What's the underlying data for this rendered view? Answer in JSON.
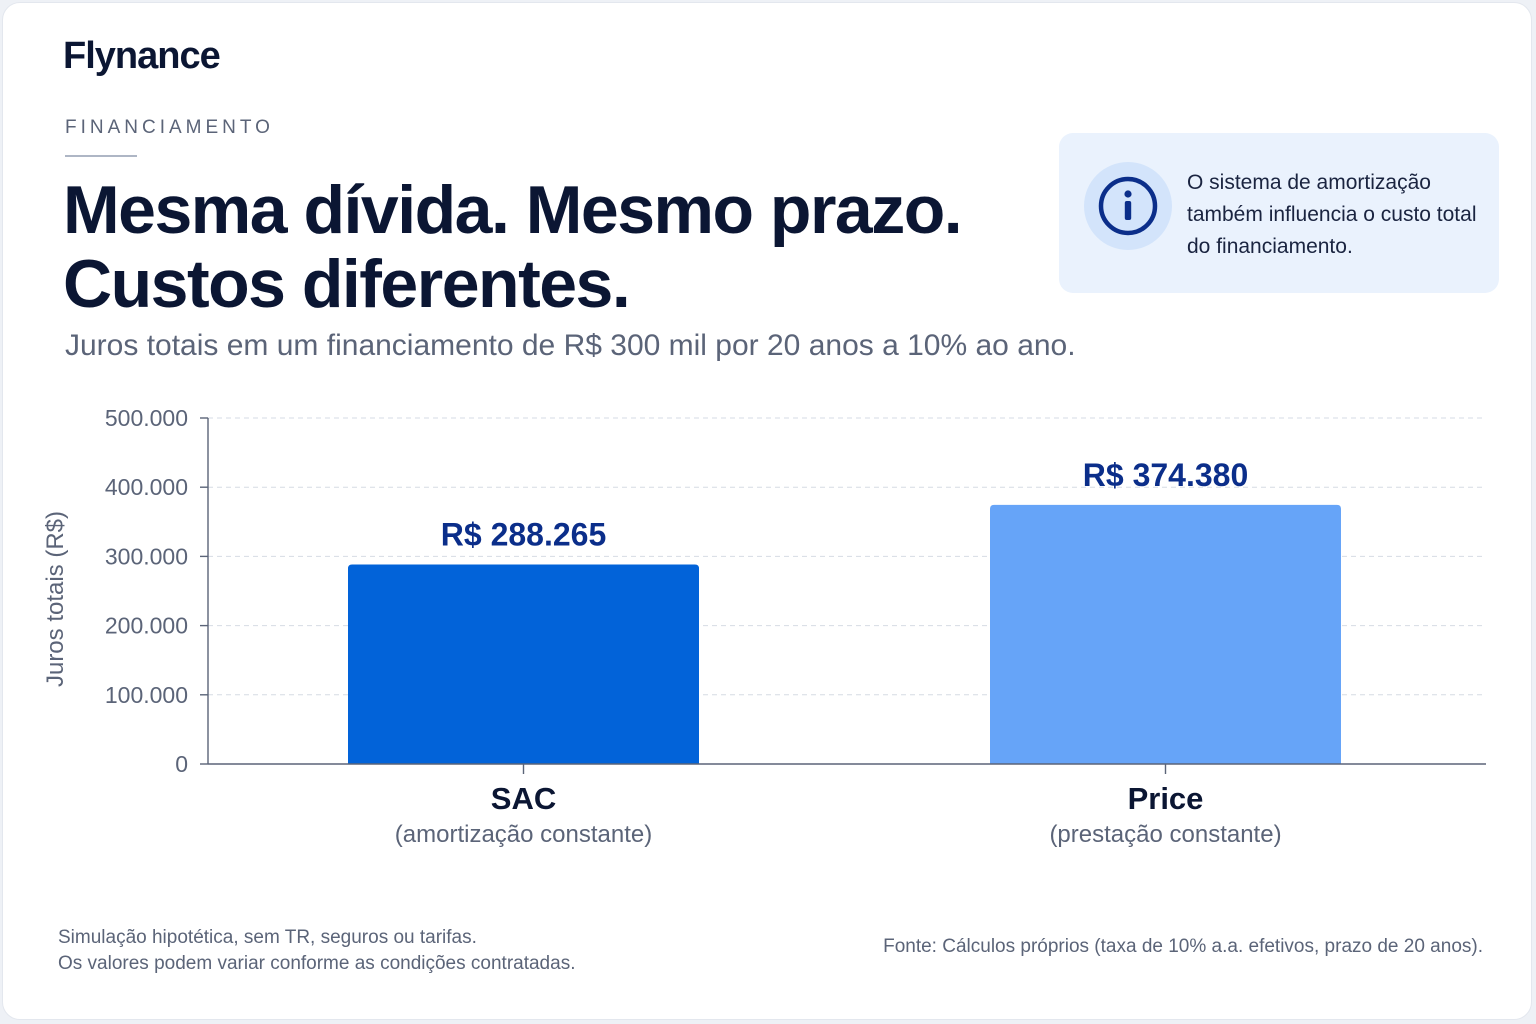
{
  "brand": {
    "name": "Flynance"
  },
  "header": {
    "eyebrow": "FINANCIAMENTO",
    "title_line1": "Mesma dívida. Mesmo prazo.",
    "title_line2": "Custos diferentes.",
    "subtitle": "Juros totais em um financiamento de R$ 300 mil por 20 anos a 10% ao ano."
  },
  "info": {
    "icon": "info-icon",
    "text": "O sistema de amortização também influencia o custo total do financiamento."
  },
  "colors": {
    "accent": "#0b2e8a",
    "sac": "#0263d9",
    "price": "#66a4f8",
    "info_bg": "#eaf2fd"
  },
  "chart_data": {
    "type": "bar",
    "ylabel": "Juros totais (R$)",
    "xlabel": "",
    "ylim": [
      0,
      500000
    ],
    "yticks": [
      0,
      100000,
      200000,
      300000,
      400000,
      500000
    ],
    "ytick_labels": [
      "0",
      "100.000",
      "200.000",
      "300.000",
      "400.000",
      "500.000"
    ],
    "grid": true,
    "categories": [
      "SAC",
      "Price"
    ],
    "category_subtitles": [
      "(amortização constante)",
      "(prestação constante)"
    ],
    "values": [
      288265,
      374380
    ],
    "value_labels": [
      "R$ 288.265",
      "R$ 374.380"
    ]
  },
  "footer": {
    "note_line1": "Simulação hipotética, sem TR, seguros ou tarifas.",
    "note_line2": "Os valores podem variar conforme as condições contratadas.",
    "source": "Fonte: Cálculos próprios (taxa de 10% a.a. efetivos, prazo de 20 anos)."
  }
}
